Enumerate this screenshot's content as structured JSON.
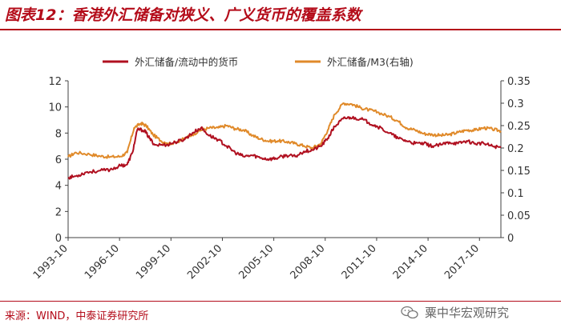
{
  "header": {
    "title": "图表12：香港外汇储备对狭义、广义货币的覆盖系数"
  },
  "footer": {
    "source": "来源：WIND，中泰证券研究所",
    "watermark": "粟中华宏观研究"
  },
  "icons": {
    "watermark_icon": "wechat-icon"
  },
  "colors": {
    "accent": "#b40c1a",
    "series1": "#b01020",
    "series2": "#e08a2a"
  },
  "chart_data": {
    "type": "line",
    "title": "",
    "xlabel": "",
    "ylabel": "",
    "x_range": [
      1993.75,
      2019.0
    ],
    "xticks": [
      "1993-10",
      "1996-10",
      "1999-10",
      "2002-10",
      "2005-10",
      "2008-10",
      "2011-10",
      "2014-10",
      "2017-10"
    ],
    "ylim_left": [
      0,
      12
    ],
    "yticks_left": [
      0,
      2,
      4,
      6,
      8,
      10,
      12
    ],
    "ylim_right": [
      0,
      0.35
    ],
    "yticks_right": [
      0,
      0.05,
      0.1,
      0.15,
      0.2,
      0.25,
      0.3,
      0.35
    ],
    "legend_position": "top",
    "grid": false,
    "series": [
      {
        "name": "外汇储备/流动中的货币",
        "axis": "left",
        "points": [
          [
            1993.75,
            4.6
          ],
          [
            1994.2,
            4.7
          ],
          [
            1994.8,
            5.0
          ],
          [
            1995.5,
            5.1
          ],
          [
            1996.2,
            5.2
          ],
          [
            1996.8,
            5.5
          ],
          [
            1997.2,
            5.6
          ],
          [
            1997.5,
            6.5
          ],
          [
            1997.8,
            8.3
          ],
          [
            1998.2,
            8.2
          ],
          [
            1998.5,
            7.6
          ],
          [
            1998.8,
            7.1
          ],
          [
            1999.5,
            7.1
          ],
          [
            2000.0,
            7.3
          ],
          [
            2000.5,
            7.5
          ],
          [
            2001.0,
            8.0
          ],
          [
            2001.5,
            8.4
          ],
          [
            2002.0,
            7.8
          ],
          [
            2002.5,
            7.5
          ],
          [
            2003.0,
            7.0
          ],
          [
            2003.5,
            6.5
          ],
          [
            2004.0,
            6.2
          ],
          [
            2004.5,
            6.3
          ],
          [
            2005.0,
            6.1
          ],
          [
            2005.5,
            6.0
          ],
          [
            2006.0,
            6.1
          ],
          [
            2006.5,
            6.3
          ],
          [
            2007.0,
            6.2
          ],
          [
            2007.5,
            6.6
          ],
          [
            2008.0,
            6.7
          ],
          [
            2008.5,
            7.0
          ],
          [
            2008.9,
            7.6
          ],
          [
            2009.3,
            8.5
          ],
          [
            2009.8,
            9.1
          ],
          [
            2010.2,
            9.2
          ],
          [
            2010.8,
            9.1
          ],
          [
            2011.3,
            8.8
          ],
          [
            2011.8,
            8.5
          ],
          [
            2012.5,
            8.0
          ],
          [
            2013.0,
            7.6
          ],
          [
            2013.5,
            7.4
          ],
          [
            2014.0,
            7.2
          ],
          [
            2014.5,
            7.2
          ],
          [
            2015.0,
            7.0
          ],
          [
            2015.5,
            7.1
          ],
          [
            2016.0,
            7.3
          ],
          [
            2016.5,
            7.2
          ],
          [
            2017.0,
            7.4
          ],
          [
            2017.5,
            7.2
          ],
          [
            2018.0,
            7.2
          ],
          [
            2018.5,
            7.0
          ],
          [
            2019.0,
            6.9
          ]
        ]
      },
      {
        "name": "外汇储备/M3(右轴)",
        "axis": "right",
        "points": [
          [
            1993.75,
            0.18
          ],
          [
            1994.2,
            0.19
          ],
          [
            1995.0,
            0.186
          ],
          [
            1995.6,
            0.182
          ],
          [
            1996.2,
            0.18
          ],
          [
            1996.8,
            0.181
          ],
          [
            1997.2,
            0.19
          ],
          [
            1997.6,
            0.245
          ],
          [
            1998.0,
            0.255
          ],
          [
            1998.3,
            0.25
          ],
          [
            1998.7,
            0.23
          ],
          [
            1999.2,
            0.215
          ],
          [
            1999.8,
            0.21
          ],
          [
            2000.5,
            0.22
          ],
          [
            2001.0,
            0.23
          ],
          [
            2001.5,
            0.24
          ],
          [
            2002.0,
            0.245
          ],
          [
            2002.5,
            0.245
          ],
          [
            2003.0,
            0.25
          ],
          [
            2003.5,
            0.243
          ],
          [
            2004.0,
            0.24
          ],
          [
            2004.5,
            0.228
          ],
          [
            2005.0,
            0.22
          ],
          [
            2005.5,
            0.215
          ],
          [
            2006.0,
            0.216
          ],
          [
            2006.5,
            0.214
          ],
          [
            2007.0,
            0.21
          ],
          [
            2007.5,
            0.205
          ],
          [
            2008.0,
            0.2
          ],
          [
            2008.5,
            0.21
          ],
          [
            2008.9,
            0.24
          ],
          [
            2009.3,
            0.275
          ],
          [
            2009.8,
            0.3
          ],
          [
            2010.3,
            0.298
          ],
          [
            2010.8,
            0.29
          ],
          [
            2011.3,
            0.285
          ],
          [
            2011.8,
            0.28
          ],
          [
            2012.5,
            0.27
          ],
          [
            2013.0,
            0.26
          ],
          [
            2013.5,
            0.245
          ],
          [
            2014.0,
            0.24
          ],
          [
            2014.5,
            0.232
          ],
          [
            2015.0,
            0.23
          ],
          [
            2015.5,
            0.228
          ],
          [
            2016.0,
            0.23
          ],
          [
            2016.5,
            0.235
          ],
          [
            2017.0,
            0.24
          ],
          [
            2017.5,
            0.24
          ],
          [
            2018.0,
            0.245
          ],
          [
            2018.5,
            0.242
          ],
          [
            2019.0,
            0.238
          ]
        ]
      }
    ]
  }
}
